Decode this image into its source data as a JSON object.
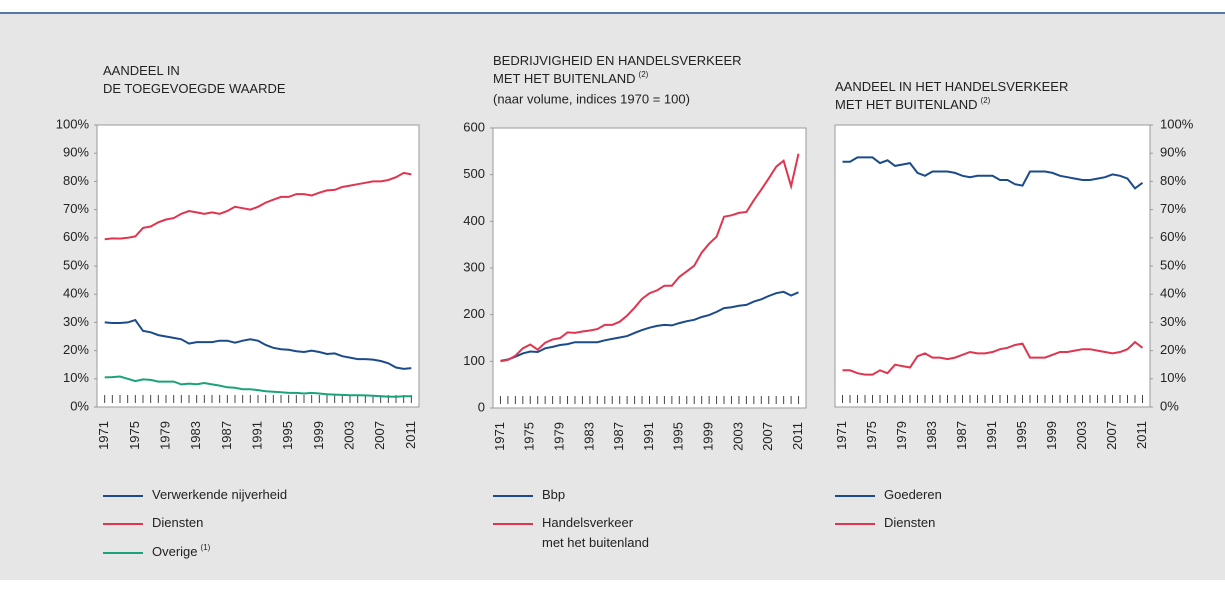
{
  "chart_data": [
    {
      "type": "line",
      "title": [
        "AANDEEL IN",
        "DE TOEGEVOEGDE WAARDE"
      ],
      "x": [
        1971,
        1972,
        1973,
        1974,
        1975,
        1976,
        1977,
        1978,
        1979,
        1980,
        1981,
        1982,
        1983,
        1984,
        1985,
        1986,
        1987,
        1988,
        1989,
        1990,
        1991,
        1992,
        1993,
        1994,
        1995,
        1996,
        1997,
        1998,
        1999,
        2000,
        2001,
        2002,
        2003,
        2004,
        2005,
        2006,
        2007,
        2008,
        2009,
        2010,
        2011
      ],
      "xlim": [
        1970,
        2012
      ],
      "xticks": [
        1971,
        1975,
        1979,
        1983,
        1987,
        1991,
        1995,
        1999,
        2003,
        2007,
        2011
      ],
      "ylim": [
        0,
        100
      ],
      "yticks": [
        {
          "value": 0,
          "label": "0%"
        },
        {
          "value": 10,
          "label": "10%"
        },
        {
          "value": 20,
          "label": "20%"
        },
        {
          "value": 30,
          "label": "30%"
        },
        {
          "value": 40,
          "label": "40%"
        },
        {
          "value": 50,
          "label": "50%"
        },
        {
          "value": 60,
          "label": "60%"
        },
        {
          "value": 70,
          "label": "70%"
        },
        {
          "value": 80,
          "label": "80%"
        },
        {
          "value": 90,
          "label": "90%"
        },
        {
          "value": 100,
          "label": "100%"
        }
      ],
      "series": [
        {
          "name": [
            "Verwerkende nijverheid"
          ],
          "color": "#1b4b8a",
          "values": [
            30,
            29.8,
            29.8,
            30,
            30.8,
            27,
            26.5,
            25.5,
            25,
            24.5,
            24,
            22.5,
            23,
            23,
            23,
            23.5,
            23.5,
            22.8,
            23.5,
            24,
            23.5,
            22,
            21,
            20.5,
            20.3,
            19.8,
            19.5,
            20,
            19.5,
            18.8,
            19,
            18,
            17.5,
            17,
            17,
            16.8,
            16.3,
            15.5,
            14,
            13.5,
            13.8
          ]
        },
        {
          "name": [
            "Diensten"
          ],
          "color": "#e0354f",
          "values": [
            59.5,
            59.8,
            59.7,
            60,
            60.5,
            63.5,
            64,
            65.5,
            66.5,
            67,
            68.5,
            69.5,
            69,
            68.5,
            69,
            68.5,
            69.5,
            71,
            70.5,
            70,
            71,
            72.5,
            73.5,
            74.5,
            74.5,
            75.5,
            75.5,
            75,
            76,
            76.8,
            77,
            78,
            78.5,
            79,
            79.5,
            80,
            80,
            80.5,
            81.5,
            83,
            82.5
          ]
        },
        {
          "name": [
            "Overige"
          ],
          "name_note": "(1)",
          "color": "#1aa37a",
          "values": [
            10.5,
            10.6,
            10.8,
            10,
            9.2,
            9.8,
            9.6,
            9,
            9,
            9,
            8,
            8.3,
            8.1,
            8.5,
            8,
            7.6,
            7,
            6.8,
            6.3,
            6.3,
            6,
            5.6,
            5.4,
            5.2,
            5,
            5,
            4.8,
            5,
            4.8,
            4.5,
            4.4,
            4.3,
            4.2,
            4.2,
            4.1,
            4,
            3.8,
            3.7,
            3.6,
            3.8,
            3.8
          ]
        }
      ]
    },
    {
      "type": "line",
      "title": [
        "BEDRIJVIGHEID EN HANDELSVERKEER",
        "MET HET BUITENLAND"
      ],
      "title_note": "(2)",
      "subtitle": "(naar volume, indices 1970 = 100)",
      "x": [
        1971,
        1972,
        1973,
        1974,
        1975,
        1976,
        1977,
        1978,
        1979,
        1980,
        1981,
        1982,
        1983,
        1984,
        1985,
        1986,
        1987,
        1988,
        1989,
        1990,
        1991,
        1992,
        1993,
        1994,
        1995,
        1996,
        1997,
        1998,
        1999,
        2000,
        2001,
        2002,
        2003,
        2004,
        2005,
        2006,
        2007,
        2008,
        2009,
        2010,
        2011
      ],
      "xlim": [
        1970,
        2012
      ],
      "xticks": [
        1971,
        1975,
        1979,
        1983,
        1987,
        1991,
        1995,
        1999,
        2003,
        2007,
        2011
      ],
      "ylim": [
        0,
        600
      ],
      "yticks": [
        0,
        100,
        200,
        300,
        400,
        500,
        600
      ],
      "series": [
        {
          "name": [
            "Bbp"
          ],
          "color": "#1b4b8a",
          "values": [
            101,
            104,
            110,
            117,
            121,
            120,
            128,
            131,
            135,
            137,
            141,
            141,
            141,
            141,
            145,
            148,
            151,
            154,
            161,
            167,
            172,
            176,
            178,
            177,
            182,
            186,
            189,
            195,
            199,
            206,
            214,
            216,
            219,
            221,
            228,
            233,
            240,
            246,
            249,
            241,
            248
          ]
        },
        {
          "name": [
            "Handelsverkeer",
            "met het buitenland"
          ],
          "color": "#e0354f",
          "values": [
            100,
            103,
            112,
            128,
            136,
            125,
            140,
            147,
            150,
            162,
            161,
            164,
            166,
            169,
            178,
            178,
            185,
            198,
            215,
            234,
            246,
            252,
            262,
            262,
            281,
            293,
            305,
            333,
            352,
            367,
            410,
            413,
            418,
            420,
            445,
            468,
            492,
            517,
            530,
            475,
            545
          ]
        }
      ]
    },
    {
      "type": "line",
      "title": [
        "AANDEEL IN HET HANDELSVERKEER",
        "MET HET BUITENLAND"
      ],
      "title_note": "(2)",
      "yaxis_side": "right",
      "x": [
        1971,
        1972,
        1973,
        1974,
        1975,
        1976,
        1977,
        1978,
        1979,
        1980,
        1981,
        1982,
        1983,
        1984,
        1985,
        1986,
        1987,
        1988,
        1989,
        1990,
        1991,
        1992,
        1993,
        1994,
        1995,
        1996,
        1997,
        1998,
        1999,
        2000,
        2001,
        2002,
        2003,
        2004,
        2005,
        2006,
        2007,
        2008,
        2009,
        2010,
        2011
      ],
      "xlim": [
        1970,
        2012
      ],
      "xticks": [
        1971,
        1975,
        1979,
        1983,
        1987,
        1991,
        1995,
        1999,
        2003,
        2007,
        2011
      ],
      "ylim": [
        0,
        100
      ],
      "yticks": [
        {
          "value": 0,
          "label": "0%"
        },
        {
          "value": 10,
          "label": "10%"
        },
        {
          "value": 20,
          "label": "20%"
        },
        {
          "value": 30,
          "label": "30%"
        },
        {
          "value": 40,
          "label": "40%"
        },
        {
          "value": 50,
          "label": "50%"
        },
        {
          "value": 60,
          "label": "60%"
        },
        {
          "value": 70,
          "label": "70%"
        },
        {
          "value": 80,
          "label": "80%"
        },
        {
          "value": 90,
          "label": "90%"
        },
        {
          "value": 100,
          "label": "100%"
        }
      ],
      "series": [
        {
          "name": [
            "Goederen"
          ],
          "color": "#1b4b8a",
          "values": [
            87,
            87,
            88.5,
            88.5,
            88.5,
            86.5,
            87.5,
            85.5,
            86,
            86.5,
            83,
            82,
            83.5,
            83.5,
            83.5,
            83,
            82,
            81.5,
            82,
            82,
            82,
            80.5,
            80.5,
            79,
            78.5,
            83.5,
            83.5,
            83.5,
            83,
            82,
            81.5,
            81,
            80.5,
            80.5,
            81,
            81.5,
            82.5,
            82,
            81,
            77.5,
            79.5
          ]
        },
        {
          "name": [
            "Diensten"
          ],
          "color": "#e0354f",
          "values": [
            13,
            13,
            12,
            11.5,
            11.5,
            13,
            12,
            15,
            14.5,
            14,
            18,
            19,
            17.5,
            17.5,
            17,
            17.5,
            18.5,
            19.5,
            19,
            19,
            19.5,
            20.5,
            21,
            22,
            22.5,
            17.5,
            17.5,
            17.5,
            18.5,
            19.5,
            19.5,
            20,
            20.5,
            20.5,
            20,
            19.5,
            19,
            19.5,
            20.5,
            23,
            21
          ]
        }
      ]
    }
  ]
}
